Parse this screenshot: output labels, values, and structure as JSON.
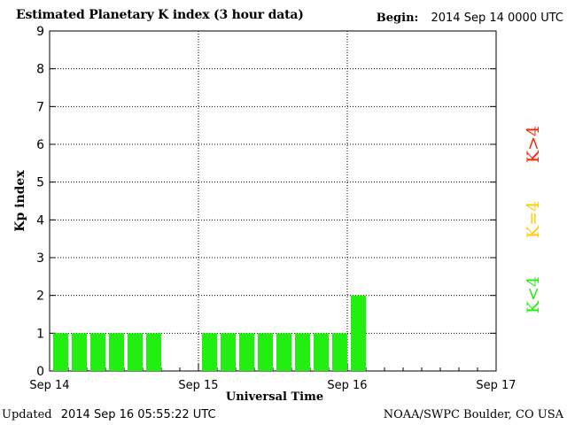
{
  "header": {
    "title": "Estimated Planetary K index (3 hour data)",
    "begin_label": "Begin:",
    "begin_value": "2014 Sep 14 0000 UTC"
  },
  "footer": {
    "updated_label": "Updated",
    "updated_value": "2014 Sep 16 05:55:22 UTC",
    "credit": "NOAA/SWPC Boulder, CO USA"
  },
  "legend": [
    {
      "label": "K>4",
      "color": "#ff2000"
    },
    {
      "label": "K=4",
      "color": "#ffcc00"
    },
    {
      "label": "K<4",
      "color": "#22ee11"
    }
  ],
  "chart_data": {
    "type": "bar",
    "title": "Estimated Planetary K index (3 hour data)",
    "xlabel": "Universal Time",
    "ylabel": "Kp index",
    "ylim": [
      0,
      9
    ],
    "yticks": [
      0,
      1,
      2,
      3,
      4,
      5,
      6,
      7,
      8,
      9
    ],
    "xtick_labels": [
      "Sep 14",
      "Sep 15",
      "Sep 16",
      "Sep 17"
    ],
    "bar_color": "#22ee11",
    "grid": true,
    "x_unit": "3-hour interval from 2014 Sep 14 0000 UTC",
    "values": [
      1,
      1,
      1,
      1,
      1,
      1,
      null,
      null,
      1,
      1,
      1,
      1,
      1,
      1,
      1,
      1,
      2
    ]
  }
}
